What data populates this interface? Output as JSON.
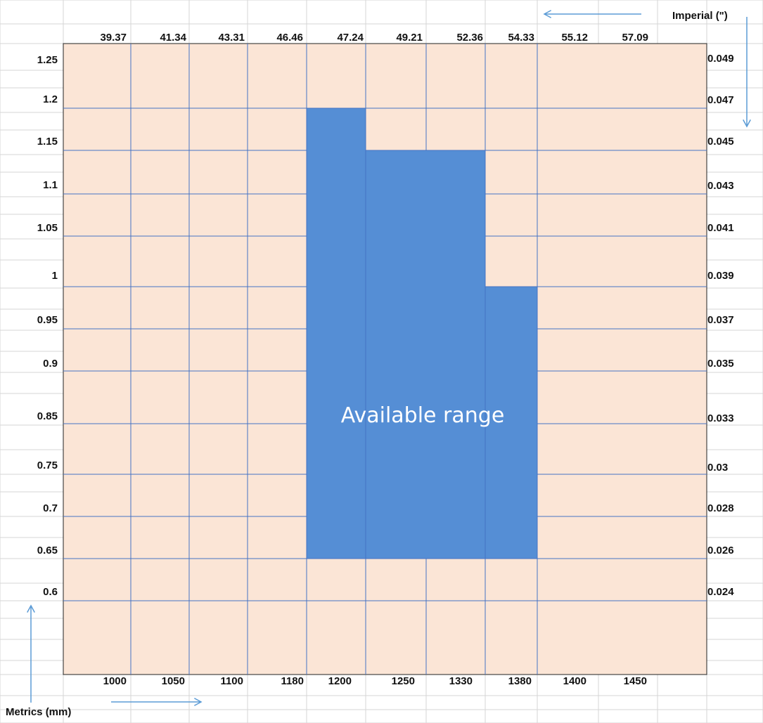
{
  "chart_data": {
    "type": "heatmap",
    "title": "",
    "x_metric_label": "Metrics (mm)",
    "y_imperial_label": "Imperial (\")",
    "x_metric_ticks": [
      "1000",
      "1050",
      "1100",
      "1180",
      "1200",
      "1250",
      "1330",
      "1380",
      "1400",
      "1450"
    ],
    "x_imperial_ticks": [
      "39.37",
      "41.34",
      "43.31",
      "46.46",
      "47.24",
      "49.21",
      "52.36",
      "54.33",
      "55.12",
      "57.09"
    ],
    "y_metric_ticks": [
      "1.25",
      "1.2",
      "1.15",
      "1.1",
      "1.05",
      "1",
      "0.95",
      "0.9",
      "0.85",
      "0.75",
      "0.7",
      "0.65",
      "0.6"
    ],
    "y_imperial_ticks": [
      "0.049",
      "0.047",
      "0.045",
      "0.043",
      "0.041",
      "0.039",
      "0.037",
      "0.035",
      "0.033",
      "0.03",
      "0.028",
      "0.026",
      "0.024"
    ],
    "available_range": {
      "label": "Available range",
      "regions": [
        {
          "width_mm": [
            1180,
            1200
          ],
          "thickness_mm": [
            0.65,
            1.2
          ]
        },
        {
          "width_mm": [
            1200,
            1330
          ],
          "thickness_mm": [
            0.65,
            1.15
          ]
        },
        {
          "width_mm": [
            1330,
            1380
          ],
          "thickness_mm": [
            0.65,
            0.95
          ]
        }
      ]
    },
    "colors": {
      "background": "#fbe5d6",
      "available": "#558ed5",
      "grid": "#4472c4",
      "arrow": "#5b9bd5"
    }
  }
}
